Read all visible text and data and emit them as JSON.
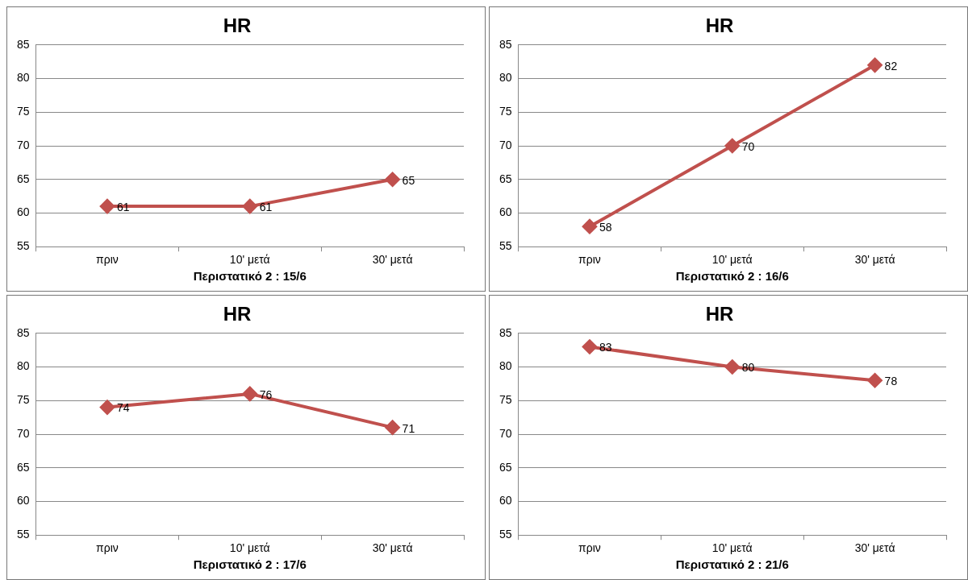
{
  "chart_data": [
    {
      "type": "line",
      "title": "HR",
      "xlabel": "Περιστατικό 2 : 15/6",
      "categories": [
        "πριν",
        "10' μετά",
        "30' μετά"
      ],
      "series": [
        {
          "color": "#c0504d",
          "values": [
            61,
            61,
            65
          ]
        }
      ],
      "ylim": [
        55,
        85
      ],
      "yticks": [
        55,
        60,
        65,
        70,
        75,
        80,
        85
      ],
      "grid": "y",
      "legend": false,
      "marker": "diamond",
      "data_labels": true
    },
    {
      "type": "line",
      "title": "HR",
      "xlabel": "Περιστατικό 2 : 16/6",
      "categories": [
        "πριν",
        "10' μετά",
        "30' μετά"
      ],
      "series": [
        {
          "color": "#c0504d",
          "values": [
            58,
            70,
            82
          ]
        }
      ],
      "ylim": [
        55,
        85
      ],
      "yticks": [
        55,
        60,
        65,
        70,
        75,
        80,
        85
      ],
      "grid": "y",
      "legend": false,
      "marker": "diamond",
      "data_labels": true
    },
    {
      "type": "line",
      "title": "HR",
      "xlabel": "Περιστατικό 2 : 17/6",
      "categories": [
        "πριν",
        "10' μετά",
        "30' μετά"
      ],
      "series": [
        {
          "color": "#c0504d",
          "values": [
            74,
            76,
            71
          ]
        }
      ],
      "ylim": [
        55,
        85
      ],
      "yticks": [
        55,
        60,
        65,
        70,
        75,
        80,
        85
      ],
      "grid": "y",
      "legend": false,
      "marker": "diamond",
      "data_labels": true
    },
    {
      "type": "line",
      "title": "HR",
      "xlabel": "Περιστατικό 2 : 21/6",
      "categories": [
        "πριν",
        "10' μετά",
        "30' μετά"
      ],
      "series": [
        {
          "color": "#c0504d",
          "values": [
            83,
            80,
            78
          ]
        }
      ],
      "ylim": [
        55,
        85
      ],
      "yticks": [
        55,
        60,
        65,
        70,
        75,
        80,
        85
      ],
      "grid": "y",
      "legend": false,
      "marker": "diamond",
      "data_labels": true
    }
  ]
}
